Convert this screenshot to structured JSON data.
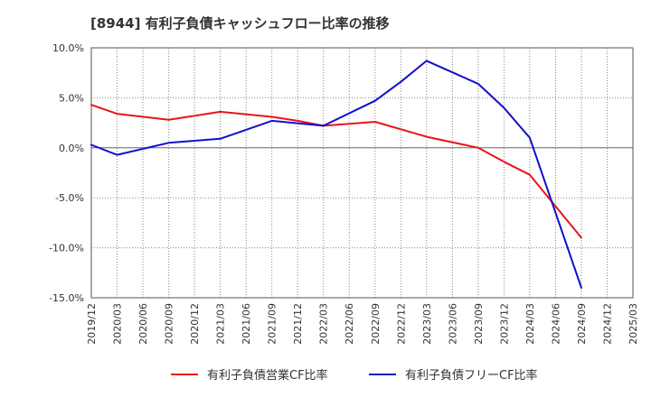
{
  "chart_data": {
    "type": "line",
    "title": "[8944]  有利子負債キャッシュフロー比率の推移",
    "xlabel": "",
    "ylabel": "",
    "x_ticks": [
      "2019/12",
      "2020/03",
      "2020/06",
      "2020/09",
      "2020/12",
      "2021/03",
      "2021/06",
      "2021/09",
      "2021/12",
      "2022/03",
      "2022/06",
      "2022/09",
      "2022/12",
      "2023/03",
      "2023/06",
      "2023/09",
      "2023/12",
      "2024/03",
      "2024/06",
      "2024/09",
      "2024/12",
      "2025/03"
    ],
    "y_ticks": [
      "10.0%",
      "5.0%",
      "0.0%",
      "-5.0%",
      "-10.0%",
      "-15.0%"
    ],
    "y_tick_values": [
      10,
      5,
      0,
      -5,
      -10,
      -15
    ],
    "ylim": [
      -15,
      10
    ],
    "grid": true,
    "legend_position": "bottom",
    "series": [
      {
        "name": "有利子負債営業CF比率",
        "color": "#e8141c",
        "x": [
          "2019/12",
          "2020/03",
          "2020/09",
          "2021/03",
          "2021/09",
          "2021/12",
          "2022/03",
          "2022/09",
          "2023/03",
          "2023/09",
          "2023/12",
          "2024/03",
          "2024/09"
        ],
        "values": [
          4.3,
          3.4,
          2.8,
          3.6,
          3.1,
          2.7,
          2.2,
          2.6,
          1.1,
          0.0,
          -1.4,
          -2.7,
          -9.0
        ]
      },
      {
        "name": "有利子負債フリーCF比率",
        "color": "#1010cc",
        "x": [
          "2019/12",
          "2020/03",
          "2020/09",
          "2021/03",
          "2021/09",
          "2022/03",
          "2022/09",
          "2022/12",
          "2023/03",
          "2023/09",
          "2023/12",
          "2024/03",
          "2024/09"
        ],
        "values": [
          0.3,
          -0.7,
          0.5,
          0.9,
          2.7,
          2.2,
          4.7,
          6.6,
          8.7,
          6.4,
          4.0,
          1.0,
          -14.0
        ]
      }
    ]
  }
}
